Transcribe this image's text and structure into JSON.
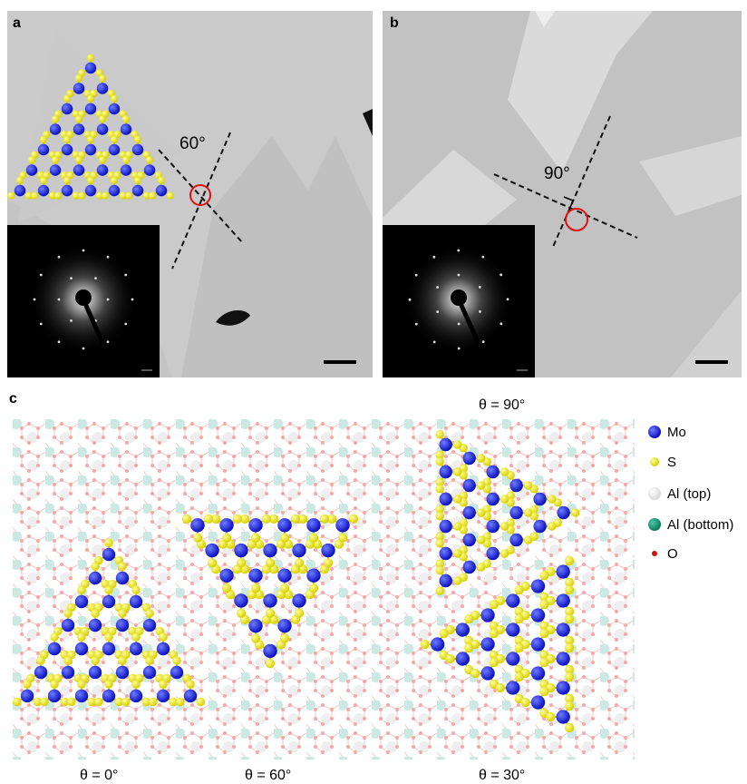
{
  "panels": {
    "a": {
      "label": "a",
      "angle": "60°"
    },
    "b": {
      "label": "b",
      "angle": "90°"
    },
    "c": {
      "label": "c",
      "captions": [
        "θ = 90°",
        "θ = 0°",
        "θ = 60°",
        "θ = 30°"
      ],
      "legend": [
        "Mo",
        "S",
        "Al (top)",
        "Al (bottom)",
        "O"
      ]
    }
  }
}
